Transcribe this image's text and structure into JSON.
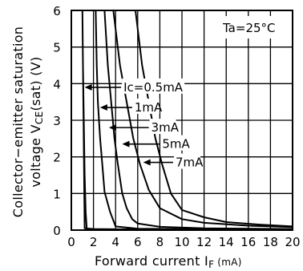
{
  "chart_data": {
    "type": "line",
    "xlabel": "Forward current IF (mA)",
    "xlabel_main": "Forward current I",
    "xlabel_sub": "F",
    "xlabel_unit": "(mA)",
    "ylabel_line1": "Collector−emitter saturation",
    "ylabel_line2_a": "voltage V",
    "ylabel_line2_sub": "CE",
    "ylabel_line2_b": "(sat) (V)",
    "xlim": [
      0,
      20
    ],
    "ylim": [
      0,
      6
    ],
    "xticks": [
      0,
      2,
      4,
      6,
      8,
      10,
      12,
      14,
      16,
      18,
      20
    ],
    "yticks": [
      0,
      1,
      2,
      3,
      4,
      5,
      6
    ],
    "condition": "Ta=25°C",
    "series": [
      {
        "name": "Ic=0.5mA",
        "x": [
          1.4,
          1.3,
          1.2,
          1.15,
          1.1,
          1.05,
          1.0,
          1.2,
          2.0,
          6.0,
          20.0
        ],
        "y": [
          0.0,
          0.5,
          1.5,
          2.5,
          3.5,
          4.5,
          6.0,
          0.05,
          0.03,
          0.02,
          0.02
        ]
      },
      {
        "name": "1mA",
        "x": [
          2.2,
          2.3,
          2.4,
          2.6,
          2.8,
          3.0,
          3.5,
          4.0,
          6.0,
          10.0,
          20.0
        ],
        "y": [
          6.0,
          4.5,
          3.5,
          2.5,
          1.8,
          1.05,
          0.5,
          0.1,
          0.04,
          0.03,
          0.02
        ]
      },
      {
        "name": "3mA",
        "x": [
          3.0,
          3.3,
          3.6,
          3.9,
          4.2,
          4.6,
          5.0,
          5.5,
          6.0,
          8.0,
          12.0,
          20.0
        ],
        "y": [
          6.0,
          4.5,
          3.5,
          2.5,
          1.8,
          1.0,
          0.6,
          0.3,
          0.18,
          0.09,
          0.05,
          0.03
        ]
      },
      {
        "name": "5mA",
        "x": [
          3.8,
          4.4,
          5.0,
          5.6,
          6.2,
          7.0,
          8.0,
          10.0,
          12.0,
          16.0,
          20.0
        ],
        "y": [
          6.0,
          4.5,
          3.5,
          2.5,
          1.8,
          1.1,
          0.6,
          0.3,
          0.2,
          0.12,
          0.08
        ]
      },
      {
        "name": "7mA",
        "x": [
          5.8,
          6.4,
          7.0,
          7.6,
          8.2,
          9.0,
          10.0,
          12.0,
          14.0,
          17.0,
          20.0
        ],
        "y": [
          6.0,
          4.5,
          3.5,
          2.5,
          1.8,
          1.0,
          0.55,
          0.35,
          0.22,
          0.15,
          0.1
        ]
      }
    ],
    "annotations": [
      {
        "text": "Ic=0.5mA",
        "series": 0,
        "arrow_from": [
          4.5,
          3.9
        ],
        "arrow_to": [
          1.2,
          3.9
        ]
      },
      {
        "text": "1mA",
        "series": 1,
        "arrow_from": [
          5.5,
          3.35
        ],
        "arrow_to": [
          2.6,
          3.35
        ]
      },
      {
        "text": "3mA",
        "series": 2,
        "arrow_from": [
          7.0,
          2.8
        ],
        "arrow_to": [
          3.4,
          2.8
        ]
      },
      {
        "text": "5mA",
        "series": 3,
        "arrow_from": [
          8.0,
          2.35
        ],
        "arrow_to": [
          4.6,
          2.35
        ]
      },
      {
        "text": "7mA",
        "series": 4,
        "arrow_from": [
          9.2,
          1.85
        ],
        "arrow_to": [
          6.5,
          1.85
        ]
      }
    ]
  }
}
